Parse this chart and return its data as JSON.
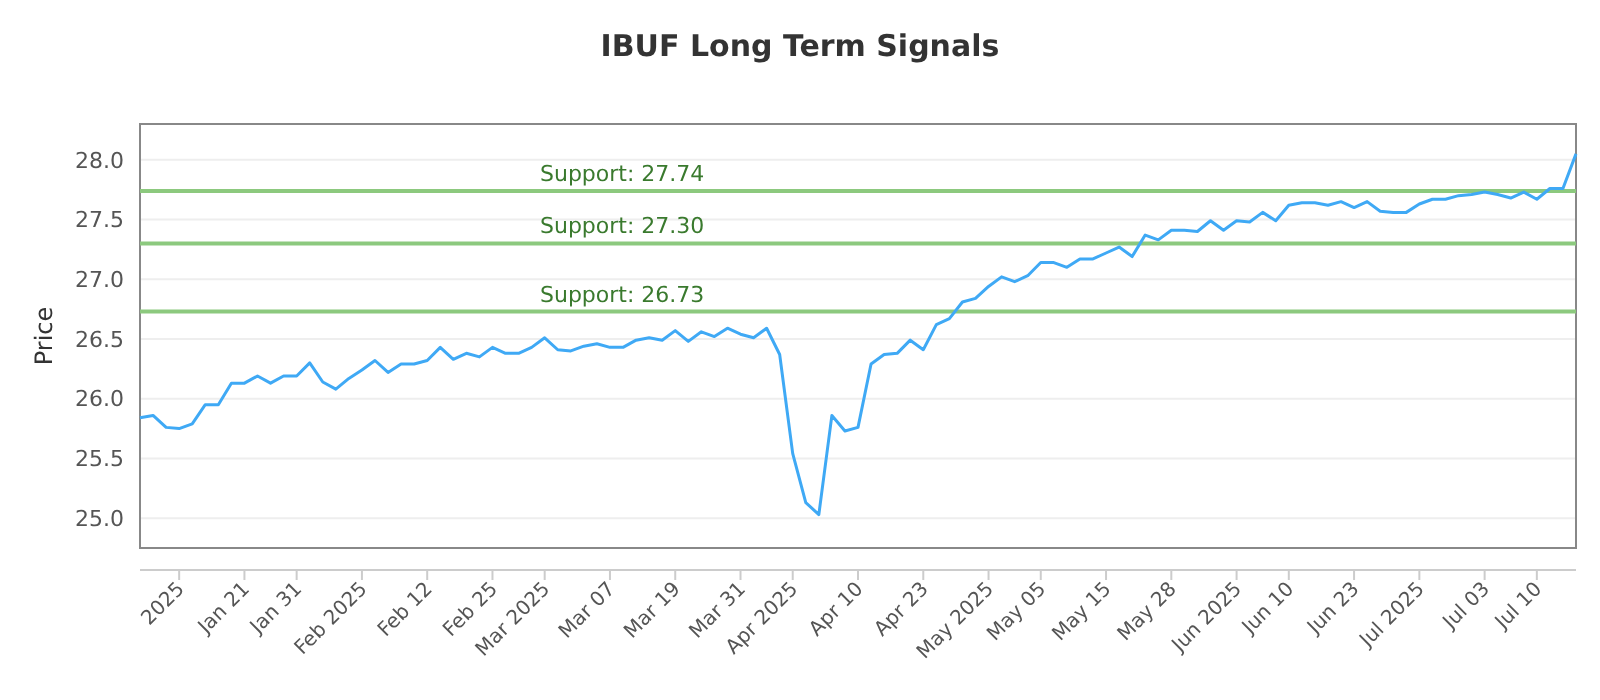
{
  "chart_data": {
    "type": "line",
    "title": "IBUF Long Term Signals",
    "ylabel": "Price",
    "categories": [
      null,
      null,
      null,
      "2025",
      null,
      null,
      null,
      null,
      "Jan 21",
      null,
      null,
      null,
      "Jan 31",
      null,
      null,
      null,
      null,
      "Feb 2025",
      null,
      null,
      null,
      null,
      "Feb 12",
      null,
      null,
      null,
      null,
      "Feb 25",
      null,
      null,
      null,
      "Mar 2025",
      null,
      null,
      null,
      null,
      "Mar 07",
      null,
      null,
      null,
      null,
      "Mar 19",
      null,
      null,
      null,
      null,
      "Mar 31",
      null,
      null,
      null,
      "Apr 2025",
      null,
      null,
      null,
      null,
      "Apr 10",
      null,
      null,
      null,
      null,
      "Apr 23",
      null,
      null,
      null,
      null,
      "May 2025",
      null,
      null,
      null,
      "May 05",
      null,
      null,
      null,
      null,
      "May 15",
      null,
      null,
      null,
      null,
      "May 28",
      null,
      null,
      null,
      null,
      "Jun 2025",
      null,
      null,
      null,
      "Jun 10",
      null,
      null,
      null,
      null,
      "Jun 23",
      null,
      null,
      null,
      null,
      "Jul 2025",
      null,
      null,
      null,
      null,
      "Jul 03",
      null,
      null,
      null,
      "Jul 10",
      null,
      null,
      null
    ],
    "series": [
      {
        "color": "#3fa9f5",
        "values": [
          25.84,
          25.86,
          25.76,
          25.75,
          25.79,
          25.95,
          25.95,
          26.13,
          26.13,
          26.19,
          26.13,
          26.19,
          26.19,
          26.3,
          26.14,
          26.08,
          26.17,
          26.24,
          26.32,
          26.22,
          26.29,
          26.29,
          26.32,
          26.43,
          26.33,
          26.38,
          26.35,
          26.43,
          26.38,
          26.38,
          26.43,
          26.51,
          26.41,
          26.4,
          26.44,
          26.46,
          26.43,
          26.43,
          26.49,
          26.51,
          26.49,
          26.57,
          26.48,
          26.56,
          26.52,
          26.59,
          26.54,
          26.51,
          26.59,
          26.37,
          25.54,
          25.13,
          25.03,
          25.86,
          25.73,
          25.76,
          26.29,
          26.37,
          26.38,
          26.49,
          26.41,
          26.62,
          26.67,
          26.81,
          26.84,
          26.94,
          27.02,
          26.98,
          27.03,
          27.14,
          27.14,
          27.1,
          27.17,
          27.17,
          27.22,
          27.27,
          27.19,
          27.37,
          27.33,
          27.41,
          27.41,
          27.4,
          27.49,
          27.41,
          27.49,
          27.48,
          27.56,
          27.49,
          27.62,
          27.64,
          27.64,
          27.62,
          27.65,
          27.6,
          27.65,
          27.57,
          27.56,
          27.56,
          27.63,
          27.67,
          27.67,
          27.7,
          27.71,
          27.73,
          27.71,
          27.68,
          27.73,
          27.67,
          27.76,
          27.76,
          28.05
        ]
      }
    ],
    "ylim": [
      24.75,
      28.3
    ],
    "yticks": [
      {
        "value": 25,
        "label": "25.0"
      },
      {
        "value": 25.5,
        "label": "25.5"
      },
      {
        "value": 26,
        "label": "26.0"
      },
      {
        "value": 26.5,
        "label": "26.5"
      },
      {
        "value": 27,
        "label": "27.0"
      },
      {
        "value": 27.5,
        "label": "27.5"
      },
      {
        "value": 28,
        "label": "28.0"
      }
    ],
    "grid": "y",
    "marker": "none",
    "line_style": "solid",
    "ref_lines": [
      {
        "axis": "y",
        "value": 27.74,
        "label": "Support: 27.74",
        "color": "#8cc97e"
      },
      {
        "axis": "y",
        "value": 27.3,
        "label": "Support: 27.30",
        "color": "#8cc97e"
      },
      {
        "axis": "y",
        "value": 26.73,
        "label": "Support: 26.73",
        "color": "#8cc97e"
      }
    ]
  }
}
